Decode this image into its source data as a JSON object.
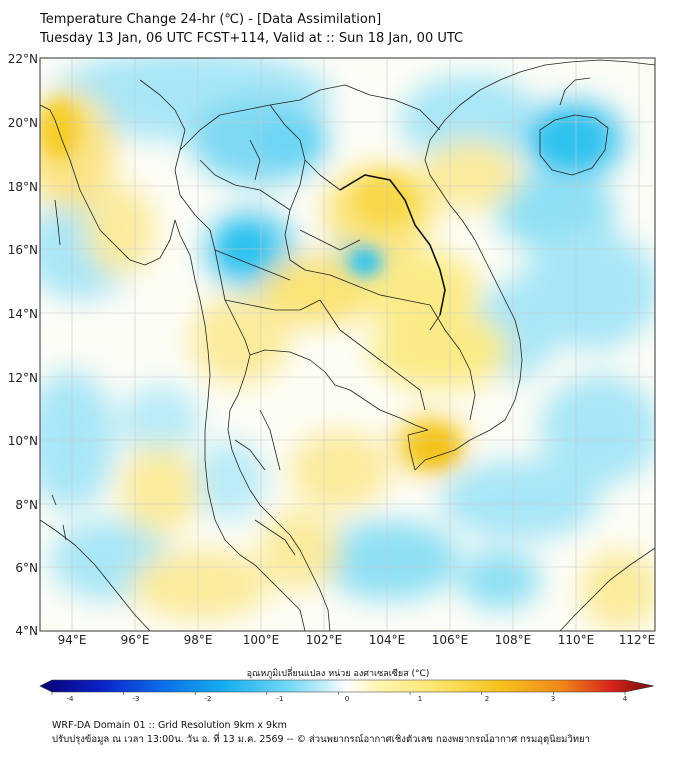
{
  "title": {
    "line1": "Temperature Change 24-hr (℃) - [Data Assimilation]",
    "line2": "Tuesday 13 Jan, 06 UTC FCST+114, Valid at :: Sun 18 Jan, 00 UTC"
  },
  "map": {
    "lat_labels": [
      "22°N",
      "20°N",
      "18°N",
      "16°N",
      "14°N",
      "12°N",
      "10°N",
      "8°N",
      "6°N",
      "4°N"
    ],
    "lon_labels": [
      "94°E",
      "96°E",
      "98°E",
      "100°E",
      "102°E",
      "104°E",
      "106°E",
      "108°E",
      "110°E",
      "112°E"
    ],
    "lat_range": [
      4,
      22
    ],
    "lon_range": [
      93,
      112.5
    ],
    "colors": {
      "background": "#fdfdf6",
      "cold": "#2fc3ef",
      "cool": "#a8e6f7",
      "warm": "#fbeb86",
      "hot": "#f6cd2a",
      "border": "#222222"
    }
  },
  "colorbar": {
    "label": "อุณหภูมิเปลี่ยนแปลง หน่วย องศาเซลเซียส (°C)",
    "ticks": [
      "-4",
      "-3",
      "-2",
      "-1",
      "0",
      "1",
      "2",
      "3",
      "4"
    ],
    "colors": [
      "#08006e",
      "#0a22c8",
      "#0c6ee8",
      "#16aef0",
      "#6dd6f4",
      "#cdf0fa",
      "#ffffff",
      "#fff6b4",
      "#fbe36a",
      "#f6c21c",
      "#f0861a",
      "#d8241c",
      "#6e0a0a"
    ]
  },
  "footer": {
    "line1": "WRF-DA Domain 01 :: Grid Resolution 9km x 9km",
    "line2": "ปรับปรุงข้อมูล ณ เวลา 13:00น. วัน อ. ที่ 13 ม.ค. 2569 -- © ส่วนพยากรณ์อากาศเชิงตัวเลข กองพยากรณ์อากาศ กรมอุตุนิยมวิทยา"
  }
}
